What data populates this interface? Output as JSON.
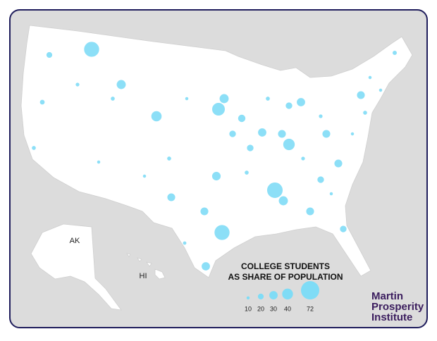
{
  "map": {
    "labels": {
      "ak": "AK",
      "hi": "HI"
    },
    "legend": {
      "title": [
        "COLLEGE STUDENTS",
        "AS SHARE OF POPULATION"
      ],
      "values": [
        10,
        20,
        30,
        40,
        72
      ]
    },
    "bubbles": [
      60,
      22,
      35,
      40,
      50,
      35,
      28,
      32,
      25,
      25,
      45,
      30,
      30,
      30,
      62,
      35,
      33,
      30,
      30,
      60,
      32,
      30,
      25,
      32,
      25,
      30,
      25,
      15,
      12,
      15,
      12,
      18,
      15,
      14,
      12,
      16,
      15,
      12,
      14,
      12,
      15,
      13,
      12,
      14,
      15,
      12
    ],
    "brand": [
      "Martin",
      "Prosperity",
      "Institute"
    ]
  }
}
